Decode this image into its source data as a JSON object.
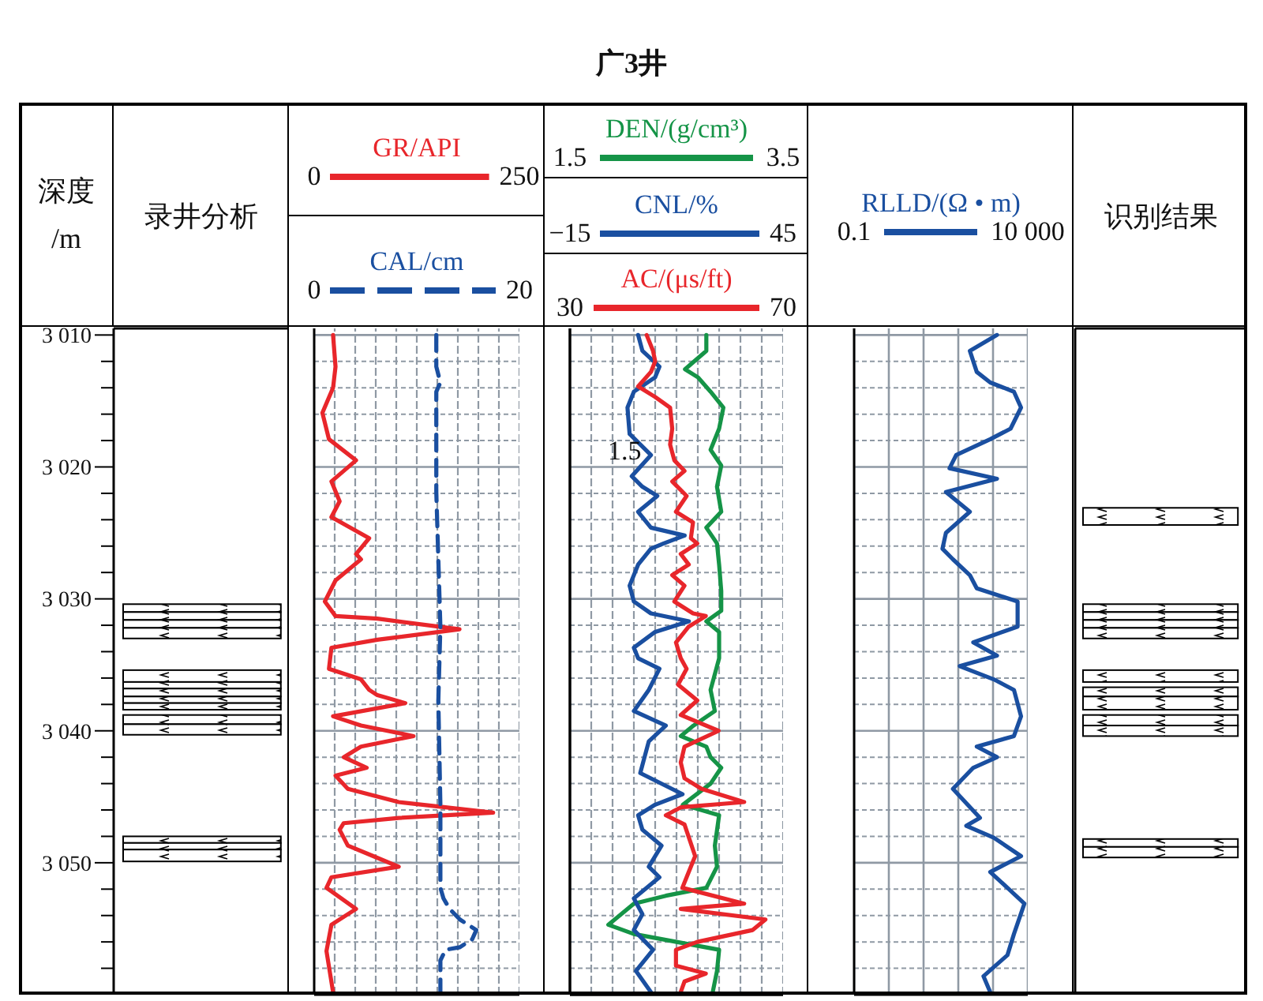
{
  "chart_data": [
    {
      "type": "bar",
      "ylabel": "深度/m",
      "categories": [
        "录井分析"
      ],
      "ylim": [
        3060,
        3009.5
      ],
      "yticks": [
        {
          "value": 3010,
          "label": "3 010"
        },
        {
          "value": 3012,
          "label": null
        },
        {
          "value": 3014,
          "label": null
        },
        {
          "value": 3016,
          "label": null
        },
        {
          "value": 3018,
          "label": null
        },
        {
          "value": 3020,
          "label": "3 020"
        },
        {
          "value": 3022,
          "label": null
        },
        {
          "value": 3024,
          "label": null
        },
        {
          "value": 3026,
          "label": null
        },
        {
          "value": 3028,
          "label": null
        },
        {
          "value": 3030,
          "label": "3 030"
        },
        {
          "value": 3032,
          "label": null
        },
        {
          "value": 3034,
          "label": null
        },
        {
          "value": 3036,
          "label": null
        },
        {
          "value": 3038,
          "label": null
        },
        {
          "value": 3040,
          "label": "3 040"
        },
        {
          "value": 3042,
          "label": null
        },
        {
          "value": 3044,
          "label": null
        },
        {
          "value": 3046,
          "label": null
        },
        {
          "value": 3048,
          "label": null
        },
        {
          "value": 3050,
          "label": "3 050"
        },
        {
          "value": 3052,
          "label": null
        },
        {
          "value": 3054,
          "label": null
        },
        {
          "value": 3056,
          "label": null
        },
        {
          "value": 3058,
          "label": null
        }
      ],
      "series": [
        {
          "color": "#ffffff",
          "base": [
            3030.4
          ],
          "values": [
            0.6
          ]
        },
        {
          "color": "#ffffff",
          "base": [
            3031.0
          ],
          "values": [
            0.6
          ]
        },
        {
          "color": "#ffffff",
          "base": [
            3031.6
          ],
          "values": [
            0.6
          ]
        },
        {
          "color": "#ffffff",
          "base": [
            3032.2
          ],
          "values": [
            0.8
          ]
        },
        {
          "color": "#ffffff",
          "base": [
            3035.4
          ],
          "values": [
            0.9
          ]
        },
        {
          "color": "#ffffff",
          "base": [
            3036.3
          ],
          "values": [
            0.5
          ]
        },
        {
          "color": "#ffffff",
          "base": [
            3036.8
          ],
          "values": [
            0.6
          ]
        },
        {
          "color": "#ffffff",
          "base": [
            3037.4
          ],
          "values": [
            0.5
          ]
        },
        {
          "color": "#ffffff",
          "base": [
            3037.9
          ],
          "values": [
            0.5
          ]
        },
        {
          "color": "#ffffff",
          "base": [
            3038.8
          ],
          "values": [
            0.7
          ]
        },
        {
          "color": "#ffffff",
          "base": [
            3039.5
          ],
          "values": [
            0.8
          ]
        },
        {
          "color": "#ffffff",
          "base": [
            3048.0
          ],
          "values": [
            0.5
          ]
        },
        {
          "color": "#ffffff",
          "base": [
            3048.5
          ],
          "values": [
            0.5
          ]
        },
        {
          "color": "#ffffff",
          "base": [
            3049.0
          ],
          "values": [
            0.9
          ]
        }
      ]
    },
    {
      "type": "line",
      "orientation": "horizontal",
      "ylim": [
        3060,
        3009.5
      ],
      "xlim": [
        0,
        250
      ],
      "x2lim": [
        0,
        20
      ],
      "grid": true,
      "legend": "top",
      "tick_labels": "x",
      "xticks": [
        0,
        {
          "value": 25,
          "label": null
        },
        {
          "value": 50,
          "label": null
        },
        {
          "value": 75,
          "label": null
        },
        {
          "value": 100,
          "label": null
        },
        {
          "value": 125,
          "label": null
        },
        {
          "value": 150,
          "label": null
        },
        {
          "value": 175,
          "label": null
        },
        {
          "value": 200,
          "label": null
        },
        {
          "value": 225,
          "label": null
        },
        250
      ],
      "x2ticks": [
        0,
        20
      ],
      "yticks": [
        3010,
        {
          "value": 3012,
          "label": null
        },
        {
          "value": 3014,
          "label": null
        },
        {
          "value": 3016,
          "label": null
        },
        {
          "value": 3018,
          "label": null
        },
        3020,
        {
          "value": 3022,
          "label": null
        },
        {
          "value": 3024,
          "label": null
        },
        {
          "value": 3026,
          "label": null
        },
        {
          "value": 3028,
          "label": null
        },
        3030,
        {
          "value": 3032,
          "label": null
        },
        {
          "value": 3034,
          "label": null
        },
        {
          "value": 3036,
          "label": null
        },
        {
          "value": 3038,
          "label": null
        },
        3040,
        {
          "value": 3042,
          "label": null
        },
        {
          "value": 3044,
          "label": null
        },
        {
          "value": 3046,
          "label": null
        },
        {
          "value": 3048,
          "label": null
        },
        3050,
        {
          "value": 3052,
          "label": null
        },
        {
          "value": 3054,
          "label": null
        },
        {
          "value": 3056,
          "label": null
        },
        {
          "value": 3058,
          "label": null
        }
      ],
      "series": [
        {
          "name": "GR/API",
          "color": "#e8262b",
          "values": [
            23,
            26,
            23,
            10,
            18,
            51,
            21,
            31,
            21,
            67,
            51,
            57,
            26,
            13,
            26,
            77,
            177,
            77,
            21,
            18,
            57,
            67,
            77,
            111,
            23,
            57,
            121,
            57,
            36,
            64,
            26,
            41,
            103,
            218,
            103,
            36,
            31,
            41,
            72,
            103,
            21,
            15,
            51,
            21,
            15,
            23
          ],
          "x": [
            3010.0,
            3012.4,
            3014.0,
            3015.9,
            3017.9,
            3019.5,
            3021.1,
            3022.6,
            3023.8,
            3025.4,
            3026.6,
            3027.0,
            3028.6,
            3030.2,
            3031.3,
            3031.5,
            3032.3,
            3033.1,
            3033.7,
            3035.3,
            3036.1,
            3036.9,
            3037.3,
            3037.9,
            3038.9,
            3039.6,
            3040.4,
            3041.2,
            3042.0,
            3042.8,
            3043.4,
            3044.4,
            3045.4,
            3046.2,
            3046.6,
            3047.0,
            3047.5,
            3048.7,
            3049.5,
            3050.3,
            3051.1,
            3051.9,
            3053.5,
            3054.7,
            3056.7,
            3059.8
          ]
        },
        {
          "name": "CAL/cm",
          "color": "#1a4fa0",
          "axis": "x2",
          "line_style": "dashed",
          "values": [
            11.9,
            11.9,
            12.3,
            11.9,
            11.9,
            12.3,
            12.1,
            12.3,
            12.3,
            12.6,
            13.2,
            14.2,
            15.8,
            15.4,
            14.2,
            12.8,
            12.3,
            12.3
          ],
          "x": [
            3010,
            3012.4,
            3013.6,
            3014.3,
            3021.9,
            3032.1,
            3037.7,
            3045.6,
            3051.9,
            3052.7,
            3053.5,
            3054.3,
            3055.1,
            3055.8,
            3056.4,
            3056.6,
            3057.4,
            3059.8
          ]
        }
      ]
    },
    {
      "type": "line",
      "title": "广3井",
      "orientation": "horizontal",
      "ylim": [
        3060,
        3009.5
      ],
      "xlim": [
        1.5,
        3.5
      ],
      "x2lim": [
        -15,
        45
      ],
      "grid": true,
      "legend": "top",
      "tick_labels": "x",
      "xticks": [
        1.5,
        {
          "value": 1.7,
          "label": null
        },
        {
          "value": 1.9,
          "label": null
        },
        {
          "value": 2.1,
          "label": null
        },
        {
          "value": 2.3,
          "label": null
        },
        {
          "value": 2.5,
          "label": null
        },
        {
          "value": 2.7,
          "label": null
        },
        {
          "value": 2.9,
          "label": null
        },
        {
          "value": 3.1,
          "label": null
        },
        {
          "value": 3.3,
          "label": null
        },
        3.5
      ],
      "x2ticks": [
        {
          "value": -15,
          "label": "−15"
        },
        45
      ],
      "yticks": [
        3010,
        {
          "value": 3012,
          "label": null
        },
        {
          "value": 3014,
          "label": null
        },
        {
          "value": 3016,
          "label": null
        },
        {
          "value": 3018,
          "label": null
        },
        3020,
        {
          "value": 3022,
          "label": null
        },
        {
          "value": 3024,
          "label": null
        },
        {
          "value": 3026,
          "label": null
        },
        {
          "value": 3028,
          "label": null
        },
        3030,
        {
          "value": 3032,
          "label": null
        },
        {
          "value": 3034,
          "label": null
        },
        {
          "value": 3036,
          "label": null
        },
        {
          "value": 3038,
          "label": null
        },
        3040,
        {
          "value": 3042,
          "label": null
        },
        {
          "value": 3044,
          "label": null
        },
        {
          "value": 3046,
          "label": null
        },
        {
          "value": 3048,
          "label": null
        },
        3050,
        {
          "value": 3052,
          "label": null
        },
        {
          "value": 3054,
          "label": null
        },
        {
          "value": 3056,
          "label": null
        },
        {
          "value": 3058,
          "label": null
        }
      ],
      "annotations": [
        "1.5"
      ],
      "series": [
        {
          "name": "DEN/(g/cm³)",
          "color": "#159447",
          "values": [
            2.78,
            2.78,
            2.58,
            2.7,
            2.82,
            2.94,
            2.9,
            2.82,
            2.92,
            2.88,
            2.92,
            2.78,
            2.88,
            2.9,
            2.92,
            2.92,
            2.78,
            2.9,
            2.9,
            2.82,
            2.86,
            2.66,
            2.54,
            2.78,
            2.82,
            2.92,
            2.82,
            2.56,
            2.9,
            2.86,
            2.88,
            2.78,
            2.4,
            2.1,
            1.86,
            2.1,
            2.5,
            2.9,
            2.88,
            2.84
          ],
          "x": [
            3010,
            3011.2,
            3012.6,
            3013.2,
            3014.3,
            3015.5,
            3017.1,
            3018.7,
            3019.9,
            3021.5,
            3023.4,
            3024.6,
            3025.8,
            3027.4,
            3029.4,
            3030.9,
            3031.7,
            3032.5,
            3034.5,
            3036.9,
            3038.5,
            3039.6,
            3040.4,
            3041.2,
            3042.0,
            3042.8,
            3044.0,
            3045.6,
            3046.4,
            3048.7,
            3050.3,
            3051.9,
            3052.5,
            3053.1,
            3054.7,
            3055.4,
            3056.0,
            3056.6,
            3058.2,
            3059.8
          ]
        },
        {
          "name": "CNL/%",
          "color": "#1a4fa0",
          "axis": "x2",
          "values": [
            4.2,
            5.4,
            10.2,
            9.0,
            3.0,
            1.2,
            1.8,
            7.8,
            2.4,
            5.4,
            9.6,
            4.2,
            7.8,
            17.3,
            11.4,
            7.8,
            4.2,
            1.8,
            3.0,
            7.8,
            18.5,
            9.0,
            3.0,
            4.2,
            10.2,
            7.2,
            3.0,
            12.0,
            7.2,
            6.0,
            4.8,
            16.7,
            9.0,
            4.2,
            5.4,
            10.8,
            7.2,
            10.2,
            3.0,
            5.4,
            3.0,
            8.4,
            3.6,
            7.8
          ],
          "x": [
            3010.0,
            3011.2,
            3012.4,
            3013.2,
            3014.3,
            3015.5,
            3017.5,
            3019.1,
            3020.7,
            3021.5,
            3022.2,
            3023.4,
            3024.6,
            3025.2,
            3025.8,
            3026.2,
            3027.4,
            3029.0,
            3030.2,
            3031.1,
            3031.7,
            3032.5,
            3033.7,
            3034.5,
            3035.3,
            3036.9,
            3038.5,
            3039.6,
            3040.8,
            3042.0,
            3043.2,
            3044.8,
            3045.6,
            3046.4,
            3047.5,
            3048.7,
            3050.3,
            3051.1,
            3052.7,
            3053.9,
            3055.1,
            3056.6,
            3058.2,
            3059.8
          ]
        }
      ]
    },
    {
      "type": "line",
      "orientation": "horizontal",
      "ylim": [
        3060,
        3009.5
      ],
      "xlim": [
        30,
        70
      ],
      "xticks": [
        30,
        70
      ],
      "legend": "top",
      "tick_labels": "x",
      "series": [
        {
          "name": "AC/(μs/ft)",
          "color": "#e8262b",
          "values": [
            44.4,
            45.6,
            46.0,
            45.2,
            42.8,
            46.0,
            48.8,
            49.2,
            48.8,
            49.6,
            51.5,
            49.2,
            51.9,
            49.9,
            53.1,
            52.7,
            53.9,
            50.8,
            52.3,
            49.2,
            51.5,
            49.6,
            53.1,
            55.5,
            52.3,
            49.9,
            50.8,
            51.9,
            50.3,
            53.9,
            50.8,
            57.9,
            51.5,
            50.8,
            51.5,
            54.7,
            62.7,
            50.8,
            48.0,
            51.5,
            53.5,
            51.9,
            51.1,
            62.7,
            50.8,
            66.7,
            64.3,
            53.9,
            49.9,
            49.9,
            55.5,
            51.5,
            50.8
          ],
          "x": [
            3010,
            3011.2,
            3012.0,
            3012.8,
            3013.9,
            3014.7,
            3015.5,
            3017.1,
            3018.3,
            3019.5,
            3020.3,
            3021.1,
            3022.2,
            3023.4,
            3024.2,
            3025.4,
            3025.8,
            3026.6,
            3027.4,
            3028.2,
            3029.0,
            3030.2,
            3031.1,
            3031.3,
            3032.1,
            3033.3,
            3034.5,
            3035.3,
            3036.5,
            3037.7,
            3038.8,
            3040.0,
            3041.2,
            3042.4,
            3043.6,
            3044.4,
            3045.4,
            3045.8,
            3046.4,
            3047.1,
            3049.5,
            3051.1,
            3051.9,
            3053.1,
            3053.5,
            3054.3,
            3055.1,
            3056.0,
            3056.6,
            3057.8,
            3058.4,
            3059.0,
            3059.8
          ]
        }
      ]
    },
    {
      "type": "line",
      "orientation": "horizontal",
      "ylim": [
        3060,
        3009.5
      ],
      "xlim": [
        0.1,
        10000
      ],
      "log": "x",
      "grid": true,
      "legend": "top",
      "tick_labels": "x",
      "xticks": [
        0.1,
        {
          "value": 1,
          "label": null
        },
        {
          "value": 10,
          "label": null
        },
        {
          "value": 100,
          "label": null
        },
        {
          "value": 1000,
          "label": null
        },
        {
          "value": 10000,
          "label": "10 000"
        }
      ],
      "yticks": [
        3010,
        {
          "value": 3012,
          "label": null
        },
        {
          "value": 3014,
          "label": null
        },
        {
          "value": 3016,
          "label": null
        },
        {
          "value": 3018,
          "label": null
        },
        3020,
        {
          "value": 3022,
          "label": null
        },
        {
          "value": 3024,
          "label": null
        },
        {
          "value": 3026,
          "label": null
        },
        {
          "value": 3028,
          "label": null
        },
        3030,
        {
          "value": 3032,
          "label": null
        },
        {
          "value": 3034,
          "label": null
        },
        {
          "value": 3036,
          "label": null
        },
        {
          "value": 3038,
          "label": null
        },
        3040,
        {
          "value": 3042,
          "label": null
        },
        {
          "value": 3044,
          "label": null
        },
        {
          "value": 3046,
          "label": null
        },
        {
          "value": 3048,
          "label": null
        },
        3050,
        {
          "value": 3052,
          "label": null
        },
        {
          "value": 3054,
          "label": null
        },
        {
          "value": 3056,
          "label": null
        },
        {
          "value": 3058,
          "label": null
        }
      ],
      "series": [
        {
          "name": "RLLD/(Ω • m)",
          "color": "#1a4fa0",
          "values": [
            1300,
            215,
            340,
            830,
            4000,
            6400,
            3200,
            830,
            87,
            56,
            1300,
            44,
            215,
            44,
            35,
            70,
            215,
            340,
            5100,
            5100,
            270,
            1300,
            110,
            1050,
            4000,
            6400,
            4000,
            340,
            1300,
            270,
            70,
            420,
            170,
            1050,
            6400,
            830,
            2600,
            8000,
            4000,
            2600,
            530,
            830
          ],
          "x": [
            3010.0,
            3011.2,
            3012.8,
            3013.6,
            3014.3,
            3015.5,
            3017.1,
            3017.9,
            3019.1,
            3020.1,
            3020.9,
            3021.9,
            3023.4,
            3025.0,
            3026.2,
            3027.0,
            3028.2,
            3029.2,
            3030.2,
            3032.1,
            3033.3,
            3034.3,
            3035.1,
            3036.1,
            3036.9,
            3038.9,
            3040.4,
            3041.2,
            3042.0,
            3042.8,
            3044.4,
            3046.6,
            3047.2,
            3048.1,
            3049.5,
            3050.7,
            3051.9,
            3053.1,
            3055.4,
            3057.0,
            3058.6,
            3059.8
          ]
        }
      ]
    },
    {
      "type": "bar",
      "categories": [
        "识别结果"
      ],
      "ylim": [
        3060,
        3009.5
      ],
      "tick_labels": "x",
      "series": [
        {
          "color": "#ffffff",
          "base": [
            3023.1
          ],
          "values": [
            1.3
          ]
        },
        {
          "color": "#ffffff",
          "base": [
            3030.4
          ],
          "values": [
            0.6
          ]
        },
        {
          "color": "#ffffff",
          "base": [
            3031.0
          ],
          "values": [
            0.6
          ]
        },
        {
          "color": "#ffffff",
          "base": [
            3031.6
          ],
          "values": [
            0.6
          ]
        },
        {
          "color": "#ffffff",
          "base": [
            3032.2
          ],
          "values": [
            0.8
          ]
        },
        {
          "color": "#ffffff",
          "base": [
            3035.4
          ],
          "values": [
            0.9
          ]
        },
        {
          "color": "#ffffff",
          "base": [
            3036.7
          ],
          "values": [
            0.7
          ]
        },
        {
          "color": "#ffffff",
          "base": [
            3037.4
          ],
          "values": [
            1.0
          ]
        },
        {
          "color": "#ffffff",
          "base": [
            3038.8
          ],
          "values": [
            0.8
          ]
        },
        {
          "color": "#ffffff",
          "base": [
            3039.6
          ],
          "values": [
            0.8
          ]
        },
        {
          "color": "#ffffff",
          "base": [
            3048.2
          ],
          "values": [
            0.6
          ]
        },
        {
          "color": "#ffffff",
          "base": [
            3048.8
          ],
          "values": [
            0.8
          ]
        }
      ]
    }
  ]
}
